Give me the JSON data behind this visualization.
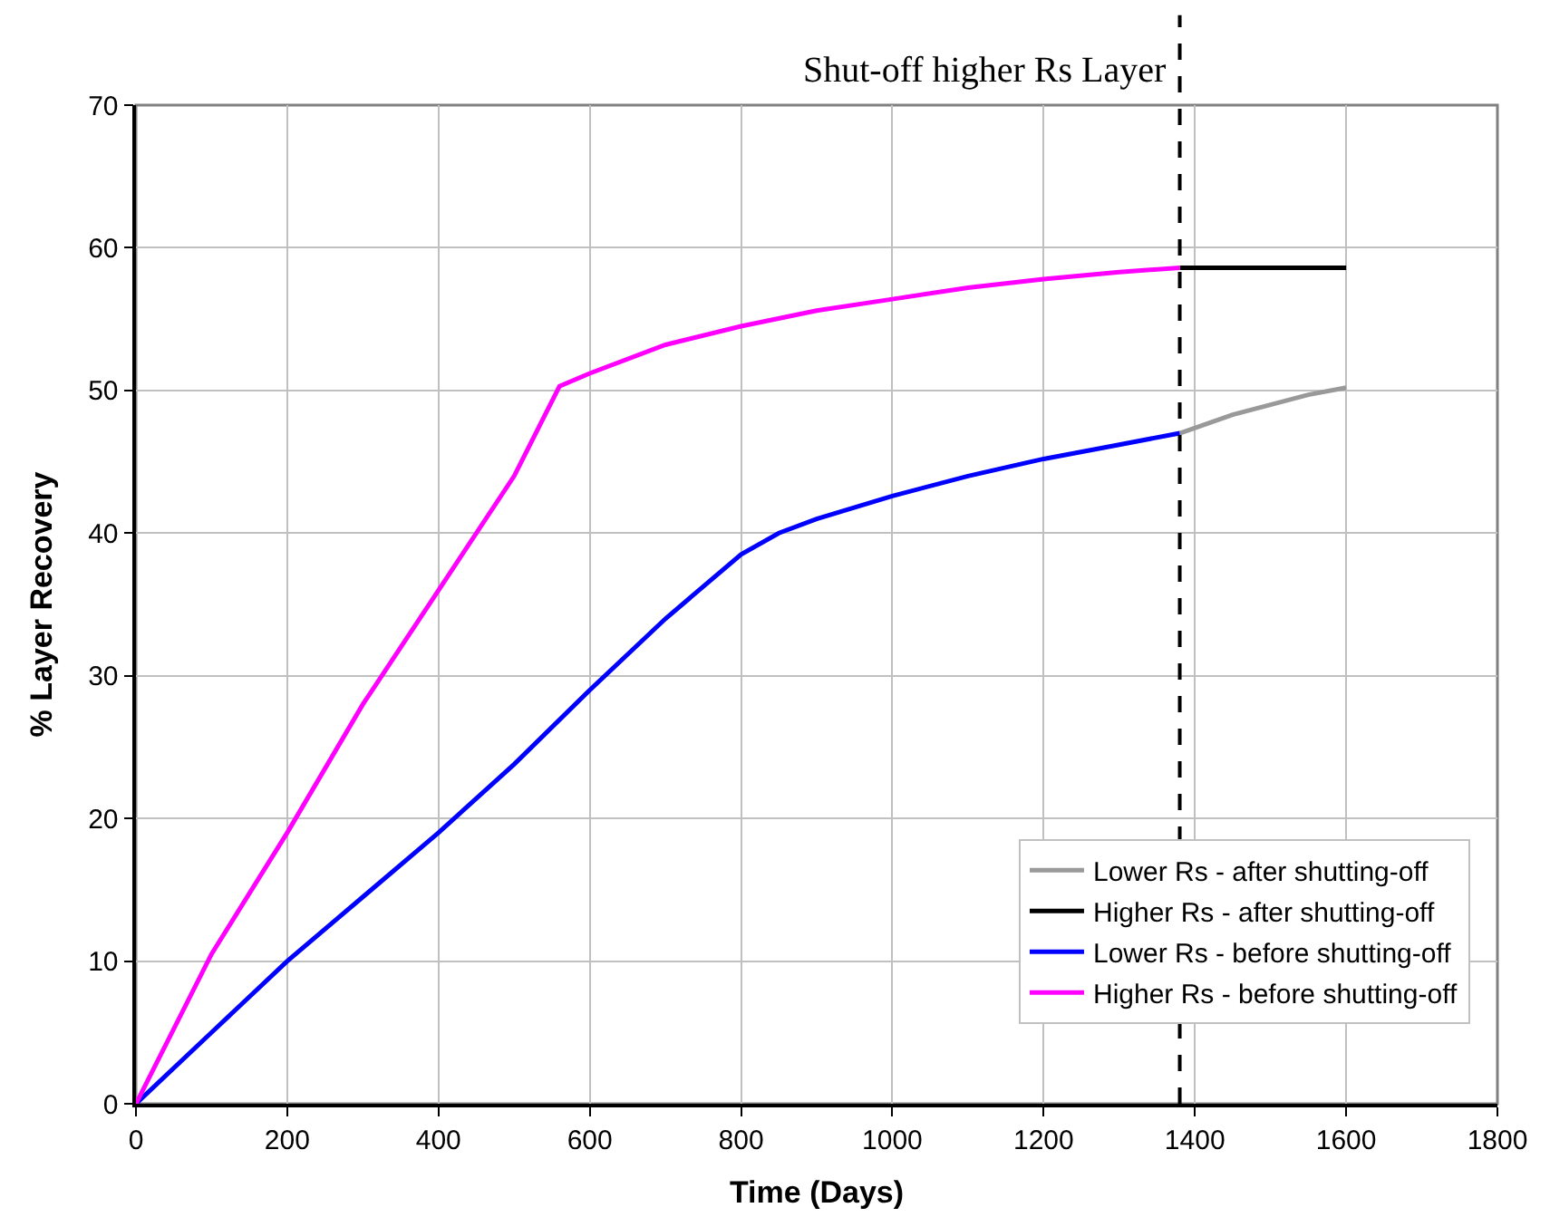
{
  "chart_data": {
    "type": "line",
    "xlabel": "Time (Days)",
    "ylabel": "% Layer Recovery",
    "xlim": [
      0,
      1800
    ],
    "xticks": [
      0,
      200,
      400,
      600,
      800,
      1000,
      1200,
      1400,
      1600,
      1800
    ],
    "ylim": [
      0,
      70
    ],
    "yticks": [
      0,
      10,
      20,
      30,
      40,
      50,
      60,
      70
    ],
    "grid": true,
    "legend": "bottom right",
    "marker": "none",
    "line_style": "solid",
    "ref_lines": [
      {
        "axis": "x",
        "value": 1380,
        "label": "Shut-off higher Rs Layer",
        "color": "#000000",
        "line_style": "dashed"
      }
    ],
    "series": [
      {
        "name": "Lower Rs - after shutting-off",
        "color": "#999999",
        "x": [
          1380,
          1450,
          1500,
          1550,
          1600
        ],
        "values": [
          47,
          48.3,
          49,
          49.7,
          50.2
        ]
      },
      {
        "name": "Higher Rs - after shutting-off",
        "color": "#000000",
        "x": [
          1380,
          1600
        ],
        "values": [
          58.6,
          58.6
        ]
      },
      {
        "name": "Lower Rs - before shutting-off",
        "color": "#0000ff",
        "x": [
          0,
          100,
          200,
          300,
          400,
          500,
          600,
          700,
          800,
          850,
          900,
          1000,
          1100,
          1200,
          1300,
          1380
        ],
        "values": [
          0,
          5,
          10,
          14.5,
          19,
          23.8,
          29,
          34,
          38.5,
          40,
          41,
          42.6,
          44,
          45.2,
          46.2,
          47
        ]
      },
      {
        "name": "Higher Rs - before shutting-off",
        "color": "#ff00ff",
        "x": [
          0,
          100,
          200,
          300,
          400,
          500,
          560,
          600,
          700,
          800,
          900,
          1000,
          1100,
          1200,
          1300,
          1380
        ],
        "values": [
          0,
          10.5,
          19,
          28,
          36,
          44,
          50.3,
          51.2,
          53.2,
          54.5,
          55.6,
          56.4,
          57.2,
          57.8,
          58.3,
          58.6
        ]
      }
    ]
  }
}
